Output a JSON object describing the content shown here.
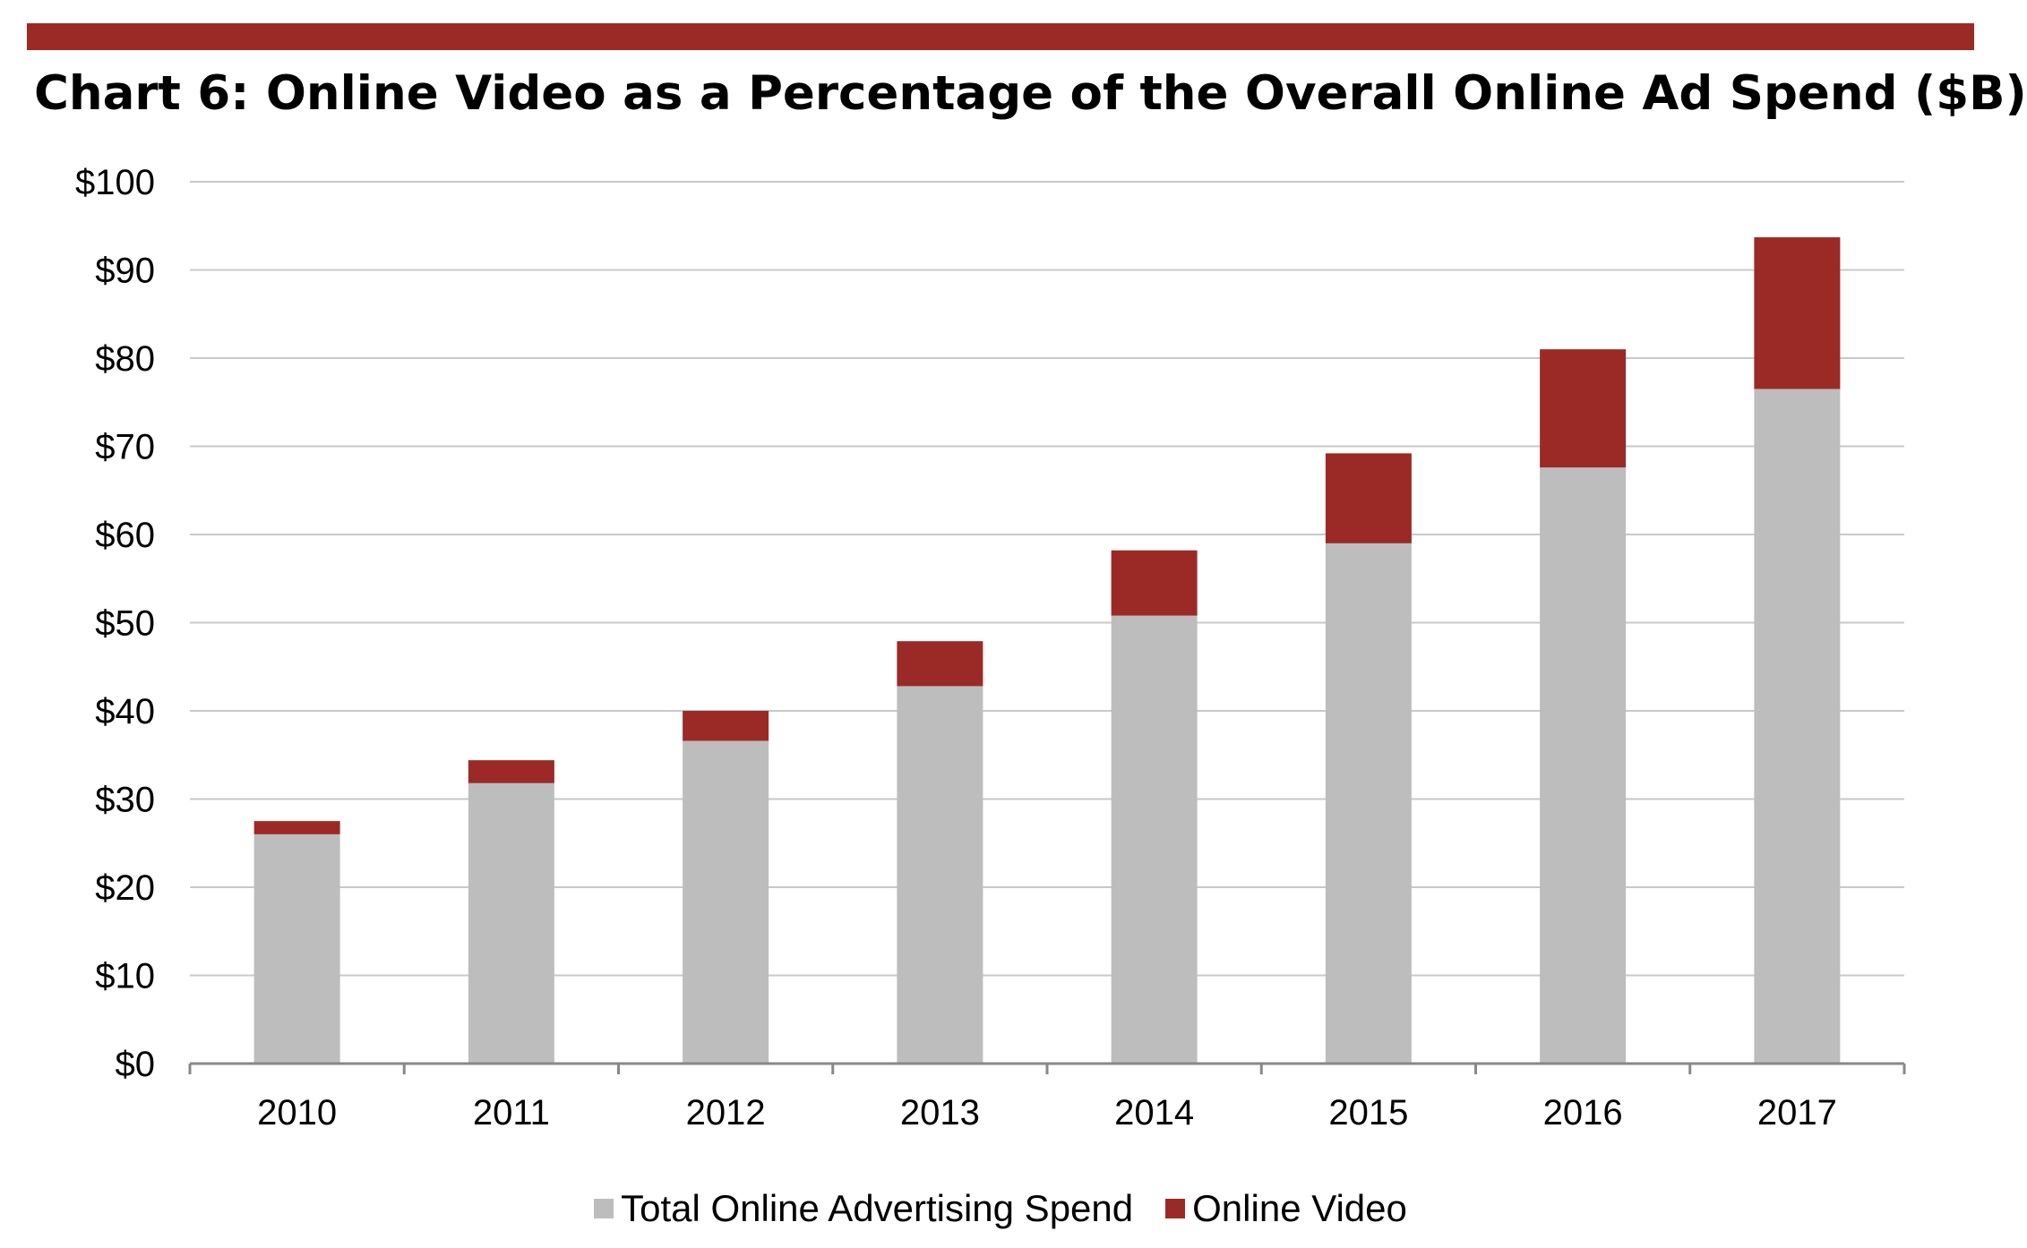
{
  "chart_data": {
    "type": "bar",
    "stacked": true,
    "title": "Chart 6: Online Video as a Percentage of the Overall Online Ad Spend ($B)",
    "categories": [
      "2010",
      "2011",
      "2012",
      "2013",
      "2014",
      "2015",
      "2016",
      "2017"
    ],
    "series": [
      {
        "name": "Total Online Advertising Spend",
        "color": "#bdbdbd",
        "values": [
          26.0,
          31.8,
          36.6,
          42.8,
          50.8,
          59.0,
          67.6,
          76.5
        ]
      },
      {
        "name": "Online Video",
        "color": "#9b2a26",
        "values": [
          1.5,
          2.6,
          3.4,
          5.1,
          7.4,
          10.2,
          13.4,
          17.2
        ]
      }
    ],
    "ylim": [
      0,
      100
    ],
    "yticks": [
      0,
      10,
      20,
      30,
      40,
      50,
      60,
      70,
      80,
      90,
      100
    ],
    "ytick_labels": [
      "$0",
      "$10",
      "$20",
      "$30",
      "$40",
      "$50",
      "$60",
      "$70",
      "$80",
      "$90",
      "$100"
    ],
    "grid": true,
    "legend_position": "bottom",
    "xlabel": "",
    "ylabel": ""
  },
  "colors": {
    "accent": "#9b2a26",
    "bar_total": "#bdbdbd",
    "gridline": "#c8c8c8",
    "axis": "#888888"
  }
}
